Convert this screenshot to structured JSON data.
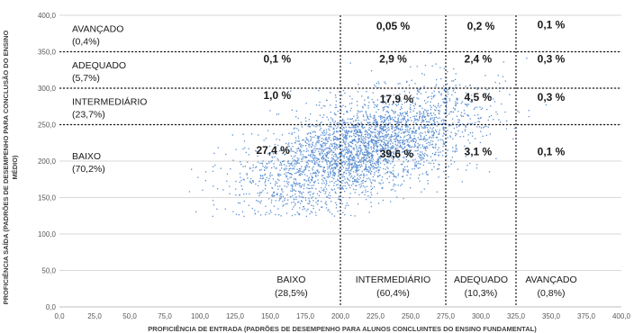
{
  "chart_data": {
    "type": "scatter",
    "xlabel": "PROFICIÊNCIA DE ENTRADA (PADRÕES DE DESEMPENHO PARA ALUNOS CONCLUINTES DO ENSINO FUNDAMENTAL)",
    "ylabel_line1": "PROFICIÊNCIA SAÍDA (PADRÕES DE DESEMPENHO PARA CONCLUSÃO DO ENSINO",
    "ylabel_line2": "MÉDIO)",
    "xlim": [
      0,
      400
    ],
    "ylim": [
      0,
      400
    ],
    "x_ticks": [
      "0,0",
      "25,0",
      "50,0",
      "75,0",
      "100,0",
      "125,0",
      "150,0",
      "175,0",
      "200,0",
      "225,0",
      "250,0",
      "275,0",
      "300,0",
      "325,0",
      "350,0",
      "375,0",
      "400,0"
    ],
    "y_ticks": [
      "0,0",
      "50,0",
      "100,0",
      "150,0",
      "200,0",
      "250,0",
      "300,0",
      "350,0",
      "400,0"
    ],
    "grid": "horizontal",
    "series_color": "#5b8fd1",
    "x_thresholds": [
      200,
      275,
      325
    ],
    "y_thresholds": [
      250,
      300,
      350
    ],
    "y_bands": [
      {
        "name": "AVANÇADO",
        "pct": "(0,4%)",
        "center": 375
      },
      {
        "name": "ADEQUADO",
        "pct": "(5,7%)",
        "center": 325
      },
      {
        "name": "INTERMEDIÁRIO",
        "pct": "(23,7%)",
        "center": 275
      },
      {
        "name": "BAIXO",
        "pct": "(70,2%)",
        "center": 200
      }
    ],
    "x_bands": [
      {
        "name": "BAIXO",
        "pct": "(28,5%)",
        "center": 165
      },
      {
        "name": "INTERMEDIÁRIO",
        "pct": "(60,4%)",
        "center": 237.5
      },
      {
        "name": "ADEQUADO",
        "pct": "(10,3%)",
        "center": 300
      },
      {
        "name": "AVANÇADO",
        "pct": "(0,8%)",
        "center": 350
      }
    ],
    "cells": [
      {
        "x": 237.5,
        "y": 380,
        "label": "0,05 %"
      },
      {
        "x": 300,
        "y": 380,
        "label": "0,2 %"
      },
      {
        "x": 350,
        "y": 382,
        "label": "0,1 %"
      },
      {
        "x": 155,
        "y": 335,
        "label": "0,1 %"
      },
      {
        "x": 237.5,
        "y": 335,
        "label": "2,9 %"
      },
      {
        "x": 298,
        "y": 335,
        "label": "2,4 %"
      },
      {
        "x": 350,
        "y": 335,
        "label": "0,3 %"
      },
      {
        "x": 155,
        "y": 285,
        "label": "1,0 %"
      },
      {
        "x": 240,
        "y": 280,
        "label": "17,9 %"
      },
      {
        "x": 298,
        "y": 283,
        "label": "4,5 %"
      },
      {
        "x": 350,
        "y": 283,
        "label": "0,3 %"
      },
      {
        "x": 152,
        "y": 210,
        "label": "27,4 %"
      },
      {
        "x": 240,
        "y": 205,
        "label": "39,6 %"
      },
      {
        "x": 298,
        "y": 208,
        "label": "3,1 %"
      },
      {
        "x": 350,
        "y": 208,
        "label": "0,1 %"
      }
    ]
  }
}
